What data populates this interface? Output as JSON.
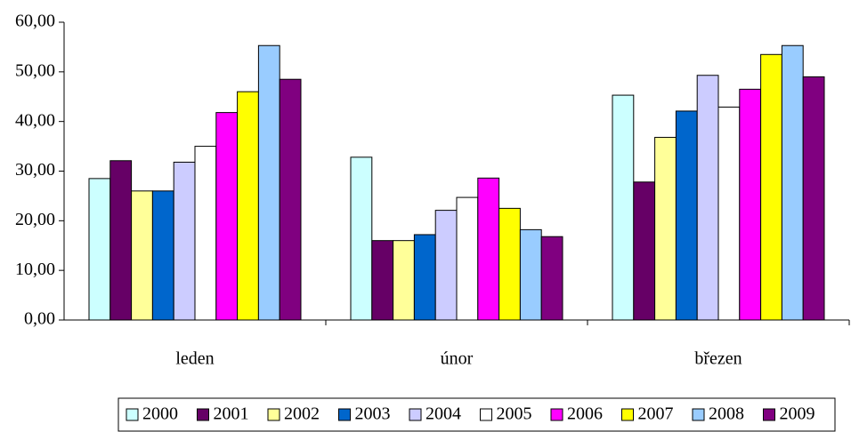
{
  "chart_data": {
    "type": "bar",
    "categories": [
      "leden",
      "únor",
      "březen"
    ],
    "series": [
      {
        "name": "2000",
        "color": "#ccffff",
        "values": [
          28.5,
          32.8,
          45.3
        ]
      },
      {
        "name": "2001",
        "color": "#660066",
        "values": [
          32.1,
          16.0,
          27.8
        ]
      },
      {
        "name": "2002",
        "color": "#ffff99",
        "values": [
          26.0,
          16.0,
          36.8
        ]
      },
      {
        "name": "2003",
        "color": "#0066cc",
        "values": [
          26.0,
          17.2,
          42.1
        ]
      },
      {
        "name": "2004",
        "color": "#ccccff",
        "values": [
          31.8,
          22.1,
          49.3
        ]
      },
      {
        "name": "2005",
        "color": "#ffffff",
        "values": [
          35.0,
          24.7,
          42.9
        ]
      },
      {
        "name": "2006",
        "color": "#ff00ff",
        "values": [
          41.8,
          28.6,
          46.5
        ]
      },
      {
        "name": "2007",
        "color": "#ffff00",
        "values": [
          46.0,
          22.5,
          53.5
        ]
      },
      {
        "name": "2008",
        "color": "#99ccff",
        "values": [
          55.3,
          18.2,
          55.3
        ]
      },
      {
        "name": "2009",
        "color": "#800080",
        "values": [
          48.5,
          16.8,
          49.0
        ]
      }
    ],
    "ylim": [
      0,
      60
    ],
    "yticks": [
      {
        "value": 0,
        "label": "0,00"
      },
      {
        "value": 10,
        "label": "10,00"
      },
      {
        "value": 20,
        "label": "20,00"
      },
      {
        "value": 30,
        "label": "30,00"
      },
      {
        "value": 40,
        "label": "40,00"
      },
      {
        "value": 50,
        "label": "50,00"
      },
      {
        "value": 60,
        "label": "60,00"
      }
    ],
    "legend": "bottom"
  }
}
